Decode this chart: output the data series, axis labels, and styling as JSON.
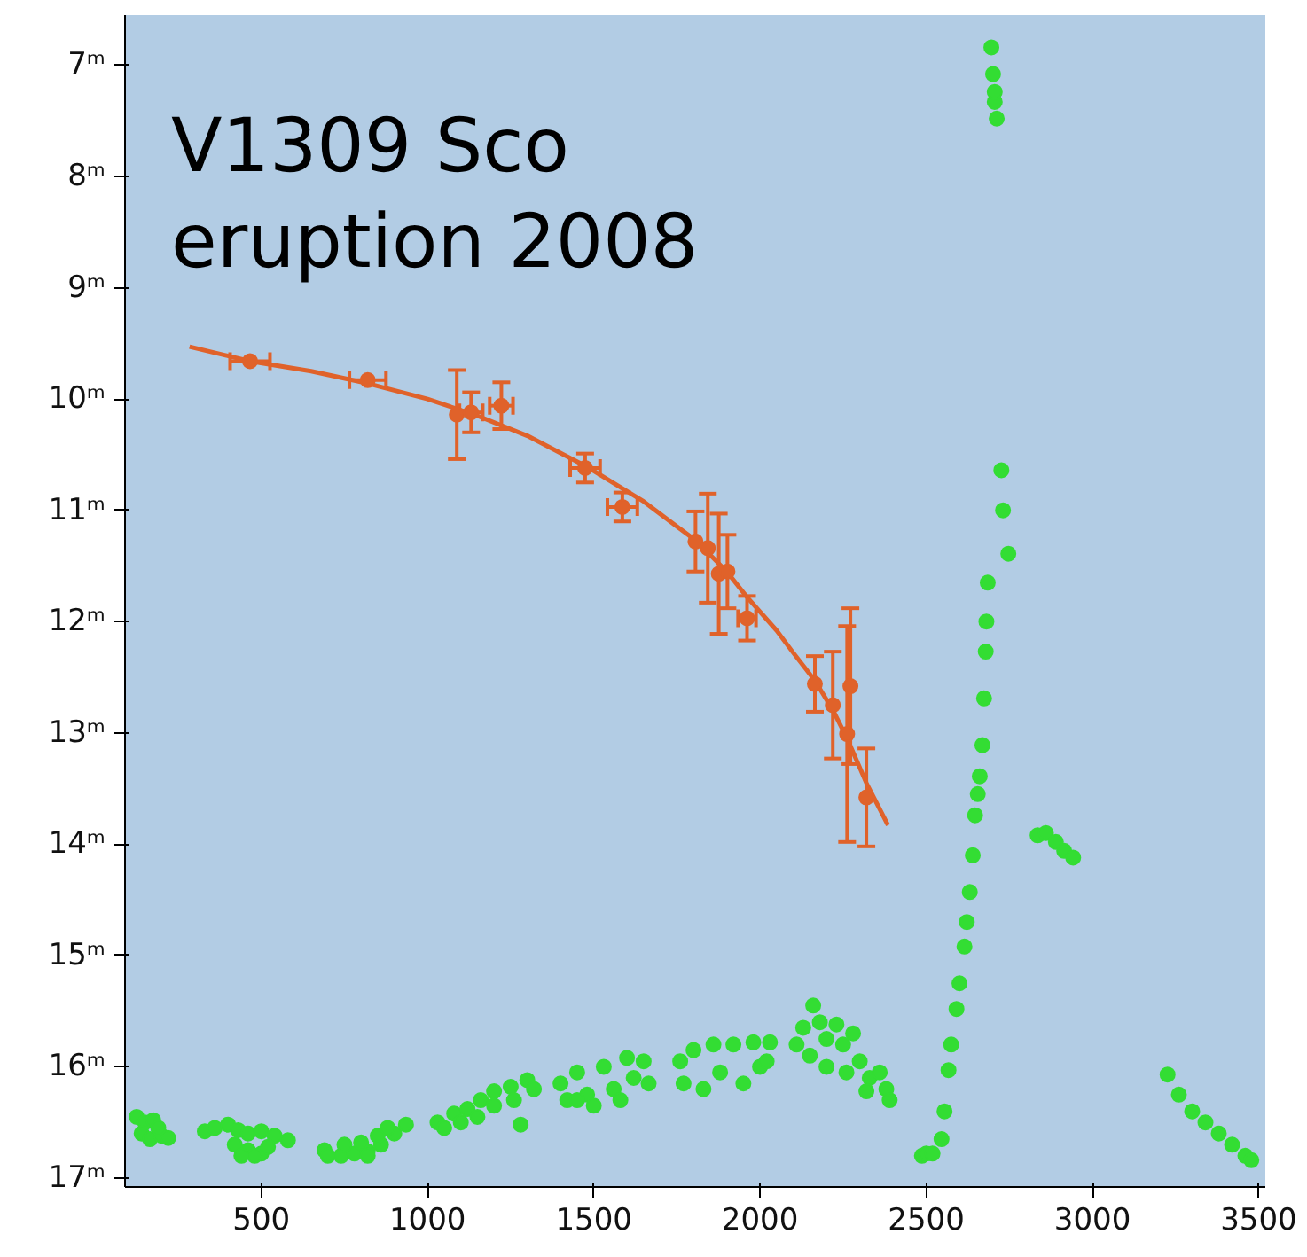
{
  "chart_data": {
    "type": "scatter",
    "title": "V1309 Sco\neruption 2008",
    "xlim": [
      90,
      3520
    ],
    "ylim": [
      17.08,
      6.55
    ],
    "xticks": [
      500,
      1000,
      1500,
      2000,
      2500,
      3000,
      3500
    ],
    "yticks": [
      {
        "value": 7,
        "label": "7ᵐ"
      },
      {
        "value": 8,
        "label": "8ᵐ"
      },
      {
        "value": 9,
        "label": "9ᵐ"
      },
      {
        "value": 10,
        "label": "10ᵐ"
      },
      {
        "value": 11,
        "label": "11ᵐ"
      },
      {
        "value": 12,
        "label": "12ᵐ"
      },
      {
        "value": 13,
        "label": "13ᵐ"
      },
      {
        "value": 14,
        "label": "14ᵐ"
      },
      {
        "value": 15,
        "label": "15ᵐ"
      },
      {
        "value": 16,
        "label": "16ᵐ"
      },
      {
        "value": 17,
        "label": "17ᵐ"
      }
    ],
    "grid": false,
    "marker": "circle",
    "series": [
      {
        "type": "line",
        "color": "#e0622a",
        "line_style": "solid",
        "marker": "none",
        "x": [
          284,
          466,
          650,
          820,
          1000,
          1150,
          1300,
          1474,
          1650,
          1806,
          1900,
          1961,
          2050,
          2100,
          2165,
          2220,
          2262,
          2320,
          2385
        ],
        "values": [
          9.53,
          9.66,
          9.75,
          9.86,
          10.0,
          10.15,
          10.33,
          10.6,
          10.92,
          11.27,
          11.55,
          11.78,
          12.08,
          12.28,
          12.53,
          12.8,
          13.05,
          13.45,
          13.83
        ]
      },
      {
        "color": "#e0622a",
        "x": [
          466,
          820,
          1088,
          1131,
          1222,
          1474,
          1586,
          1806,
          1843,
          1876,
          1902,
          1961,
          2165,
          2219,
          2262,
          2272,
          2320
        ],
        "values": [
          9.66,
          9.83,
          10.14,
          10.12,
          10.06,
          10.62,
          10.97,
          11.28,
          11.34,
          11.57,
          11.55,
          11.97,
          12.56,
          12.75,
          13.01,
          12.58,
          13.58
        ],
        "errors": [
          null,
          null,
          0.4,
          0.18,
          0.21,
          0.13,
          0.13,
          0.27,
          0.49,
          0.54,
          0.33,
          0.2,
          0.25,
          0.48,
          0.97,
          0.7,
          0.44
        ],
        "xerrors": [
          60,
          55,
          null,
          35,
          35,
          45,
          45,
          null,
          null,
          null,
          null,
          27,
          null,
          null,
          null,
          null,
          null
        ]
      },
      {
        "color": "#33dd33",
        "x": [
          125,
          150,
          175,
          140,
          165,
          200,
          220,
          190,
          330,
          360,
          400,
          430,
          460,
          500,
          540,
          580,
          420,
          460,
          500,
          440,
          480,
          520,
          690,
          700,
          740,
          780,
          820,
          860,
          900,
          935,
          750,
          800,
          850,
          880,
          820,
          1030,
          1050,
          1080,
          1120,
          1160,
          1200,
          1250,
          1300,
          1320,
          1100,
          1150,
          1200,
          1260,
          1280,
          1400,
          1420,
          1450,
          1480,
          1500,
          1530,
          1560,
          1580,
          1600,
          1620,
          1650,
          1665,
          1450,
          1760,
          1770,
          1800,
          1830,
          1860,
          1880,
          1920,
          1950,
          1980,
          2000,
          2030,
          2020,
          2110,
          2130,
          2160,
          2180,
          2200,
          2230,
          2250,
          2280,
          2300,
          2330,
          2360,
          2380,
          2390,
          2150,
          2200,
          2260,
          2320,
          2487,
          2500,
          2519,
          2546,
          2555,
          2567,
          2575,
          2591,
          2600,
          2615,
          2622,
          2631,
          2640,
          2647,
          2655,
          2661,
          2669,
          2674,
          2679,
          2681,
          2685,
          2747,
          2731,
          2726,
          2712,
          2706,
          2706,
          2701,
          2696,
          2835,
          2860,
          2890,
          2915,
          2942,
          3226,
          3260,
          3300,
          3340,
          3380,
          3420,
          3460,
          3478
        ],
        "values": [
          16.45,
          16.5,
          16.48,
          16.6,
          16.65,
          16.62,
          16.64,
          16.55,
          16.58,
          16.55,
          16.52,
          16.57,
          16.6,
          16.58,
          16.62,
          16.66,
          16.7,
          16.75,
          16.78,
          16.8,
          16.8,
          16.72,
          16.75,
          16.8,
          16.8,
          16.78,
          16.76,
          16.7,
          16.6,
          16.52,
          16.7,
          16.68,
          16.62,
          16.55,
          16.8,
          16.5,
          16.55,
          16.42,
          16.38,
          16.3,
          16.22,
          16.18,
          16.12,
          16.2,
          16.5,
          16.45,
          16.35,
          16.3,
          16.52,
          16.15,
          16.3,
          16.05,
          16.25,
          16.35,
          16.0,
          16.2,
          16.3,
          15.92,
          16.1,
          15.95,
          16.15,
          16.3,
          15.95,
          16.15,
          15.85,
          16.2,
          15.8,
          16.05,
          15.8,
          16.15,
          15.78,
          16.0,
          15.78,
          15.95,
          15.8,
          15.65,
          15.45,
          15.6,
          15.75,
          15.62,
          15.8,
          15.7,
          15.95,
          16.1,
          16.05,
          16.2,
          16.3,
          15.9,
          16.0,
          16.05,
          16.22,
          16.8,
          16.78,
          16.78,
          16.65,
          16.4,
          16.03,
          15.8,
          15.48,
          15.25,
          14.92,
          14.7,
          14.43,
          14.1,
          13.74,
          13.55,
          13.39,
          13.11,
          12.69,
          12.27,
          12.0,
          11.65,
          11.39,
          11.0,
          10.64,
          7.48,
          7.33,
          7.24,
          7.08,
          6.84,
          13.92,
          13.9,
          13.98,
          14.06,
          14.12,
          16.07,
          16.25,
          16.4,
          16.5,
          16.6,
          16.7,
          16.8,
          16.84
        ]
      }
    ]
  }
}
